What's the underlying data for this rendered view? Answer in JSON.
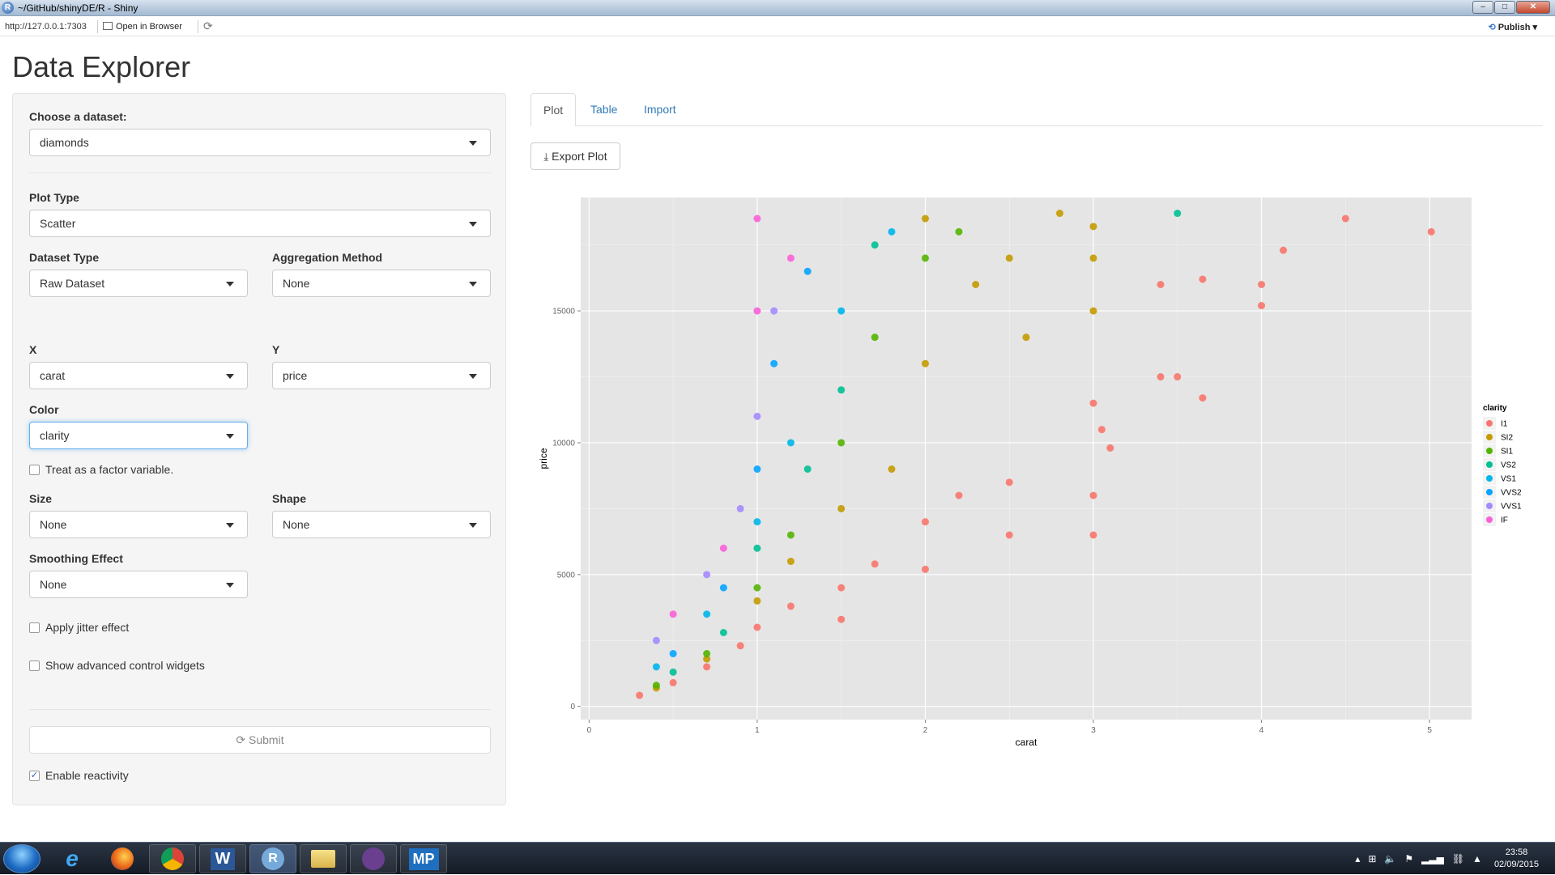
{
  "window": {
    "title": "~/GitHub/shinyDE/R - Shiny",
    "controls": [
      "–",
      "□",
      "✕"
    ]
  },
  "addressbar": {
    "url": "http://127.0.0.1:7303",
    "open_in_browser": "Open in Browser",
    "publish": "Publish"
  },
  "app": {
    "title": "Data Explorer"
  },
  "sidebar": {
    "dataset": {
      "label": "Choose a dataset:",
      "value": "diamonds"
    },
    "plot_type": {
      "label": "Plot Type",
      "value": "Scatter"
    },
    "dataset_type": {
      "label": "Dataset Type",
      "value": "Raw Dataset"
    },
    "aggregation": {
      "label": "Aggregation Method",
      "value": "None"
    },
    "x": {
      "label": "X",
      "value": "carat"
    },
    "y": {
      "label": "Y",
      "value": "price"
    },
    "color": {
      "label": "Color",
      "value": "clarity"
    },
    "factor_check": {
      "label": "Treat as a factor variable.",
      "checked": false
    },
    "size": {
      "label": "Size",
      "value": "None"
    },
    "shape": {
      "label": "Shape",
      "value": "None"
    },
    "smoothing": {
      "label": "Smoothing Effect",
      "value": "None"
    },
    "jitter": {
      "label": "Apply jitter effect",
      "checked": false
    },
    "advanced": {
      "label": "Show advanced control widgets",
      "checked": false
    },
    "submit": {
      "label": "Submit"
    },
    "reactivity": {
      "label": "Enable reactivity",
      "checked": true
    }
  },
  "main": {
    "tabs": [
      {
        "label": "Plot",
        "active": true
      },
      {
        "label": "Table",
        "active": false
      },
      {
        "label": "Import",
        "active": false
      }
    ],
    "export_button": "Export Plot"
  },
  "chart_data": {
    "type": "scatter",
    "xlabel": "carat",
    "ylabel": "price",
    "xlim": [
      -0.05,
      5.25
    ],
    "ylim": [
      -500,
      19300
    ],
    "x_ticks": [
      0,
      1,
      2,
      3,
      4,
      5
    ],
    "y_ticks": [
      0,
      5000,
      10000,
      15000
    ],
    "legend_title": "clarity",
    "legend_position": "right",
    "background": "#e5e5e5",
    "grid": true,
    "series": [
      {
        "name": "I1",
        "color": "#f8766d",
        "points": [
          [
            0.3,
            420
          ],
          [
            0.5,
            900
          ],
          [
            0.7,
            1500
          ],
          [
            0.9,
            2300
          ],
          [
            1.0,
            3000
          ],
          [
            1.2,
            3800
          ],
          [
            1.5,
            4500
          ],
          [
            1.5,
            3300
          ],
          [
            1.7,
            5400
          ],
          [
            2.0,
            5200
          ],
          [
            2.0,
            7000
          ],
          [
            2.2,
            8000
          ],
          [
            2.5,
            8500
          ],
          [
            2.5,
            6500
          ],
          [
            3.0,
            6500
          ],
          [
            3.0,
            8000
          ],
          [
            3.0,
            11500
          ],
          [
            3.05,
            10500
          ],
          [
            3.1,
            9800
          ],
          [
            3.4,
            12500
          ],
          [
            3.5,
            12500
          ],
          [
            3.65,
            11700
          ],
          [
            3.4,
            16000
          ],
          [
            3.65,
            16200
          ],
          [
            4.0,
            16000
          ],
          [
            4.0,
            15200
          ],
          [
            4.13,
            17300
          ],
          [
            4.5,
            18500
          ],
          [
            5.01,
            18000
          ]
        ]
      },
      {
        "name": "SI2",
        "color": "#c49a00",
        "points": [
          [
            0.4,
            700
          ],
          [
            0.7,
            1800
          ],
          [
            1.0,
            4000
          ],
          [
            1.2,
            5500
          ],
          [
            1.5,
            7500
          ],
          [
            1.8,
            9000
          ],
          [
            2.0,
            13000
          ],
          [
            2.0,
            18500
          ],
          [
            2.3,
            16000
          ],
          [
            2.5,
            17000
          ],
          [
            2.8,
            18700
          ],
          [
            3.0,
            18200
          ],
          [
            3.0,
            17000
          ],
          [
            3.0,
            15000
          ],
          [
            2.6,
            14000
          ]
        ]
      },
      {
        "name": "SI1",
        "color": "#53b400",
        "points": [
          [
            0.4,
            800
          ],
          [
            0.7,
            2000
          ],
          [
            1.0,
            4500
          ],
          [
            1.2,
            6500
          ],
          [
            1.5,
            10000
          ],
          [
            1.7,
            14000
          ],
          [
            2.0,
            17000
          ],
          [
            2.2,
            18000
          ]
        ]
      },
      {
        "name": "VS2",
        "color": "#00c094",
        "points": [
          [
            0.5,
            1300
          ],
          [
            0.8,
            2800
          ],
          [
            1.0,
            6000
          ],
          [
            1.3,
            9000
          ],
          [
            1.5,
            12000
          ],
          [
            1.7,
            17500
          ],
          [
            3.5,
            18700
          ]
        ]
      },
      {
        "name": "VS1",
        "color": "#00b6eb",
        "points": [
          [
            0.4,
            1500
          ],
          [
            0.7,
            3500
          ],
          [
            1.0,
            7000
          ],
          [
            1.2,
            10000
          ],
          [
            1.5,
            15000
          ],
          [
            1.8,
            18000
          ]
        ]
      },
      {
        "name": "VVS2",
        "color": "#06a4ff",
        "points": [
          [
            0.5,
            2000
          ],
          [
            0.8,
            4500
          ],
          [
            1.0,
            9000
          ],
          [
            1.1,
            13000
          ],
          [
            1.3,
            16500
          ]
        ]
      },
      {
        "name": "VVS1",
        "color": "#a58aff",
        "points": [
          [
            0.4,
            2500
          ],
          [
            0.7,
            5000
          ],
          [
            0.9,
            7500
          ],
          [
            1.0,
            11000
          ],
          [
            1.1,
            15000
          ]
        ]
      },
      {
        "name": "IF",
        "color": "#fb61d7",
        "points": [
          [
            0.5,
            3500
          ],
          [
            0.8,
            6000
          ],
          [
            1.0,
            15000
          ],
          [
            1.0,
            18500
          ],
          [
            1.2,
            17000
          ]
        ]
      }
    ]
  },
  "taskbar": {
    "apps": [
      "e",
      "ff",
      "chrome",
      "W",
      "R",
      "folder",
      "cat",
      "MP"
    ],
    "time": "23:58",
    "date": "02/09/2015"
  }
}
